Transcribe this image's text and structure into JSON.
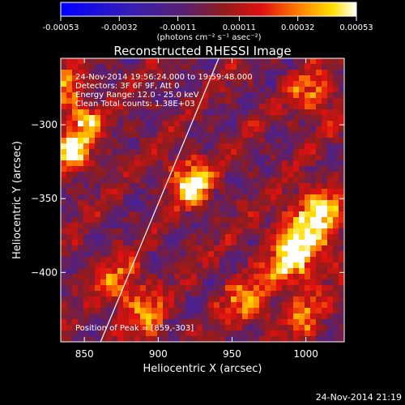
{
  "chart_data": {
    "type": "heatmap",
    "title": "Reconstructed RHESSI Image",
    "xlabel": "Heliocentric X (arcsec)",
    "ylabel": "Heliocentric Y (arcsec)",
    "xlim": [
      834,
      1026
    ],
    "ylim": [
      -447,
      -255
    ],
    "x_ticks": [
      850,
      900,
      950,
      1000
    ],
    "y_ticks": [
      -300,
      -350,
      -400
    ],
    "colorbar": {
      "range": [
        -0.00053,
        0.00053
      ],
      "tick_values": [
        -0.00053,
        -0.00032,
        -0.00011,
        0.00011,
        0.00032,
        0.00053
      ],
      "tick_labels": [
        "-0.00053",
        "-0.00032",
        "-0.00011",
        "0.00011",
        "0.00032",
        "0.00053"
      ],
      "unit_label": "(photons cm⁻² s⁻¹ asec⁻²)"
    },
    "annotations": [
      "24-Nov-2014 19:56:24.000 to 19:59:48.000",
      "Detectors: 3F 6F 9F, Att 0",
      "Energy Range: 12.0 - 25.0 keV",
      "Clean    Total counts: 1.38E+03"
    ],
    "peak_label": "Position of Peak = [859,-303]",
    "peak_position": [
      859,
      -303
    ],
    "limb_line": [
      [
        861,
        -447
      ],
      [
        941,
        -255
      ]
    ],
    "bright_sources": [
      {
        "x": 843,
        "y": -318,
        "sigma": 10,
        "amp": 0.0005
      },
      {
        "x": 850,
        "y": -298,
        "sigma": 8,
        "amp": 0.00045
      },
      {
        "x": 838,
        "y": -275,
        "sigma": 9,
        "amp": 0.0004
      },
      {
        "x": 920,
        "y": -335,
        "sigma": 10,
        "amp": 0.00042
      },
      {
        "x": 925,
        "y": -345,
        "sigma": 8,
        "amp": 0.0004
      },
      {
        "x": 875,
        "y": -410,
        "sigma": 12,
        "amp": 0.00035
      },
      {
        "x": 893,
        "y": -430,
        "sigma": 10,
        "amp": 0.0003
      },
      {
        "x": 1000,
        "y": -375,
        "sigma": 14,
        "amp": 0.0005
      },
      {
        "x": 990,
        "y": -395,
        "sigma": 12,
        "amp": 0.00045
      },
      {
        "x": 1010,
        "y": -355,
        "sigma": 10,
        "amp": 0.0004
      },
      {
        "x": 1005,
        "y": -280,
        "sigma": 10,
        "amp": 0.00038
      },
      {
        "x": 960,
        "y": -420,
        "sigma": 12,
        "amp": 0.00035
      },
      {
        "x": 1000,
        "y": -430,
        "sigma": 10,
        "amp": 0.00032
      }
    ]
  },
  "footer_timestamp": "24-Nov-2014 21:19"
}
